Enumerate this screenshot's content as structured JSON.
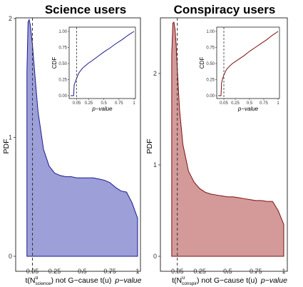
{
  "chart_data": [
    {
      "type": "area",
      "title": "Science users",
      "ylabel": "PDF",
      "xlabel_pre": "t(N",
      "xlabel_sup": "u",
      "xlabel_sub": "science",
      "xlabel_post": ") not G−cause t(u)",
      "xlabel_pvalue": "p−value",
      "xlim": [
        -0.05,
        1.0
      ],
      "ylim": [
        0,
        2.0
      ],
      "xticks": [
        0.05,
        0.25,
        0.5,
        0.75,
        1.0
      ],
      "xtick_labels": [
        "0.05",
        "0.25",
        "0.5",
        "0.75",
        "1"
      ],
      "yticks": [
        0,
        1,
        2
      ],
      "ytick_labels": [
        "0",
        "1",
        "2"
      ],
      "threshold": 0.05,
      "fill_color": "#9c9fd8",
      "line_color": "#1a1a8c",
      "x": [
        0.0,
        0.01,
        0.02,
        0.03,
        0.05,
        0.07,
        0.1,
        0.15,
        0.2,
        0.25,
        0.3,
        0.35,
        0.4,
        0.45,
        0.5,
        0.55,
        0.6,
        0.65,
        0.7,
        0.75,
        0.8,
        0.85,
        0.9,
        0.95,
        1.0
      ],
      "y": [
        1.55,
        1.97,
        1.99,
        1.95,
        1.78,
        1.55,
        1.22,
        0.9,
        0.76,
        0.7,
        0.68,
        0.67,
        0.67,
        0.66,
        0.66,
        0.66,
        0.66,
        0.65,
        0.64,
        0.62,
        0.58,
        0.55,
        0.54,
        0.45,
        0.32
      ],
      "inset": {
        "xlabel": "p−value",
        "ylabel": "CDF",
        "xticks": [
          0.05,
          0.25,
          0.5,
          0.75,
          1.0
        ],
        "xtick_labels": [
          "0.05",
          "0.25",
          "0.5",
          "0.75",
          "1"
        ],
        "yticks": [
          0,
          0.25,
          0.5,
          0.75,
          1.0
        ],
        "ytick_labels": [
          "0.00",
          "0.25",
          "0.50",
          "0.75",
          "1.00"
        ],
        "x": [
          -0.05,
          0.0,
          0.01,
          0.03,
          0.05,
          0.08,
          0.1,
          0.15,
          0.2,
          0.25,
          0.3,
          0.4,
          0.5,
          0.6,
          0.7,
          0.8,
          0.9,
          1.0
        ],
        "y": [
          0.0,
          0.0,
          0.17,
          0.22,
          0.27,
          0.34,
          0.37,
          0.43,
          0.47,
          0.51,
          0.54,
          0.61,
          0.68,
          0.74,
          0.81,
          0.87,
          0.94,
          1.0
        ]
      }
    },
    {
      "type": "area",
      "title": "Conspiracy users",
      "ylabel": "PDF",
      "xlabel_pre": "t(N",
      "xlabel_sup": "u",
      "xlabel_sub": "conspir",
      "xlabel_post": ") not G−cause t(u)",
      "xlabel_pvalue": "p−value",
      "xlim": [
        -0.05,
        1.0
      ],
      "ylim": [
        0,
        2.6
      ],
      "xticks": [
        0.05,
        0.25,
        0.5,
        0.75,
        1.0
      ],
      "xtick_labels": [
        "0.05",
        "0.25",
        "0.5",
        "0.75",
        "1"
      ],
      "yticks": [
        0,
        1,
        2
      ],
      "ytick_labels": [
        "0",
        "1",
        "2"
      ],
      "threshold": 0.05,
      "fill_color": "#d49a9a",
      "line_color": "#7a1010",
      "x": [
        0.0,
        0.01,
        0.02,
        0.03,
        0.04,
        0.05,
        0.07,
        0.1,
        0.15,
        0.2,
        0.25,
        0.3,
        0.35,
        0.4,
        0.45,
        0.5,
        0.55,
        0.6,
        0.65,
        0.7,
        0.75,
        0.8,
        0.85,
        0.9,
        0.95,
        1.0
      ],
      "y": [
        2.2,
        2.55,
        2.56,
        2.48,
        2.3,
        2.05,
        1.6,
        1.22,
        0.93,
        0.81,
        0.74,
        0.7,
        0.68,
        0.67,
        0.66,
        0.65,
        0.65,
        0.64,
        0.63,
        0.62,
        0.61,
        0.61,
        0.6,
        0.6,
        0.5,
        0.35
      ],
      "inset": {
        "xlabel": "p−value",
        "ylabel": "CDF",
        "xticks": [
          0.05,
          0.25,
          0.5,
          0.75,
          1.0
        ],
        "xtick_labels": [
          "0.05",
          "0.25",
          "0.5",
          "0.75",
          "1"
        ],
        "yticks": [
          0,
          0.25,
          0.5,
          0.75,
          1.0
        ],
        "ytick_labels": [
          "0.00",
          "0.25",
          "0.50",
          "0.75",
          "1.00"
        ],
        "x": [
          -0.05,
          0.0,
          0.01,
          0.03,
          0.05,
          0.08,
          0.1,
          0.15,
          0.2,
          0.25,
          0.3,
          0.4,
          0.5,
          0.6,
          0.7,
          0.8,
          0.9,
          1.0
        ],
        "y": [
          0.0,
          0.0,
          0.2,
          0.27,
          0.32,
          0.38,
          0.41,
          0.46,
          0.5,
          0.53,
          0.56,
          0.62,
          0.69,
          0.75,
          0.81,
          0.87,
          0.94,
          1.0
        ]
      }
    }
  ]
}
